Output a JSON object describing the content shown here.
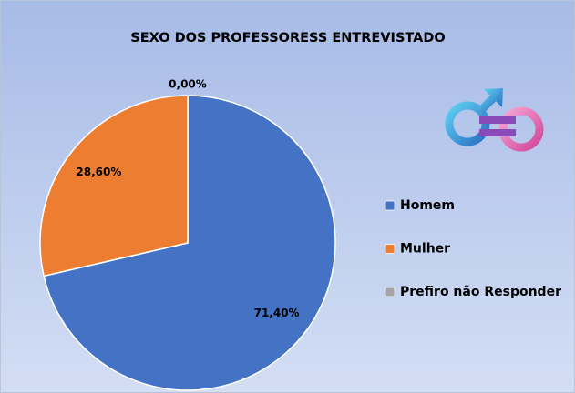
{
  "chart_data": {
    "type": "pie",
    "title": "SEXO DOS PROFESSORESS ENTREVISTADO",
    "categories": [
      "Homem",
      "Mulher",
      "Prefiro não Responder"
    ],
    "values": [
      71.4,
      28.6,
      0
    ],
    "value_labels": [
      "71,40%",
      "28,60%",
      "0,00%"
    ],
    "colors": [
      "#4472c4",
      "#ed7d31",
      "#a5a5a5"
    ],
    "legend": "right"
  }
}
